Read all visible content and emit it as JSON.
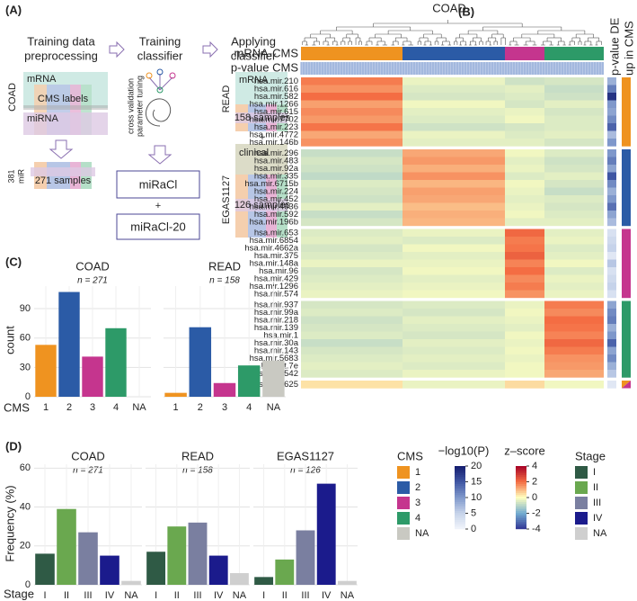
{
  "panel_a": {
    "label": "(A)",
    "steps": [
      [
        "Training data",
        "preprocessing"
      ],
      [
        "Training",
        "classifier"
      ],
      [
        "Applying",
        "classifier"
      ]
    ],
    "cohort": "COAD",
    "mrna": "mRNA",
    "cms_labels": "CMS labels",
    "mirna": "miRNA",
    "features": [
      "381",
      "miR"
    ],
    "samples": "271 samples",
    "tuning": [
      "cross validation",
      "parameter tuning"
    ],
    "classifier": "miRaCl",
    "plus": "+",
    "classifier20": "miRaCl-20",
    "read": "READ",
    "read_mrna": "mRNA",
    "read_samples": "158 samples",
    "plus2": "+",
    "clinical": "clinical",
    "egas": "EGAS1127",
    "egas_samples": "126 samples"
  },
  "panel_c": {
    "label": "(C)",
    "ylabel": "count",
    "xlabel": "CMS"
  },
  "panel_d": {
    "label": "(D)",
    "ylabel": "Frequency (%)",
    "xlabel": "Stage"
  },
  "legends": {
    "cms": {
      "title": "CMS",
      "labels": [
        "1",
        "2",
        "3",
        "4",
        "NA"
      ],
      "colors": [
        "#ef9320",
        "#2b5ba6",
        "#c5358e",
        "#2d9a68",
        "#c9c9c2"
      ]
    },
    "pvalue": {
      "title": "−log10(P)",
      "ticks": [
        20,
        15,
        10,
        5,
        0
      ],
      "colors": [
        "#141c6e",
        "#3f56a3",
        "#7f98cb",
        "#c6d3ea",
        "#f2f5fb"
      ]
    },
    "zscore": {
      "title": "z–score",
      "ticks": [
        4,
        2,
        0,
        -2,
        -4
      ],
      "colors": [
        "#a50026",
        "#f46d43",
        "#ffffbf",
        "#74add1",
        "#313695"
      ]
    },
    "stage": {
      "title": "Stage",
      "labels": [
        "I",
        "II",
        "III",
        "IV",
        "NA"
      ],
      "colors": [
        "#2f5a45",
        "#6aa84f",
        "#7a7fa0",
        "#1b1b8c",
        "#cfcfcf"
      ]
    }
  },
  "chart_data": [
    {
      "type": "heatmap",
      "label": "(B)",
      "title": "COAD",
      "row_annotations": [
        "mRNA-CMS",
        "p-value CMS"
      ],
      "side_columns": [
        "p-value DE",
        "up in CMS"
      ],
      "columns": [
        "1",
        "2",
        "3",
        "4"
      ],
      "rows": [
        "hsa.mir.210",
        "hsa.mir.616",
        "hsa.mir.582",
        "hsa.mir.1266",
        "hsa.mir.615",
        "hsa.mir.7702",
        "hsa.mir.223",
        "hsa.mir.4772",
        "hsa.mir.146b",
        "hsa.mir.296",
        "hsa.mir.483",
        "hsa.mir.92a",
        "hsa.mir.335",
        "hsa.mir.6715b",
        "hsa.mir.224",
        "hsa.mir.452",
        "hsa.mir.4636",
        "hsa.mir.592",
        "hsa.mir.196b",
        "hsa.mir.653",
        "hsa.mir.6854",
        "hsa.mir.4662a",
        "hsa.mir.375",
        "hsa.mir.148a",
        "hsa.mir.96",
        "hsa.mir.429",
        "hsa.mir.1296",
        "hsa.mir.574",
        "hsa.mir.937",
        "hsa.mir.99a",
        "hsa.mir.218",
        "hsa.mir.139",
        "hsa.mir.1",
        "hsa.mir.30a",
        "hsa.mir.143",
        "hsa.mir.5683",
        "hsa.let.7e",
        "hsa.mir.542",
        "hsa.mir.625"
      ],
      "values": [
        [
          1.8,
          -0.3,
          -0.7,
          -0.6
        ],
        [
          1.5,
          -0.5,
          -0.4,
          -0.8
        ],
        [
          2.0,
          -0.6,
          -0.5,
          -0.7
        ],
        [
          1.3,
          -0.2,
          -0.6,
          -0.4
        ],
        [
          1.6,
          -0.4,
          -0.3,
          -0.6
        ],
        [
          1.4,
          -0.5,
          -0.2,
          -0.5
        ],
        [
          1.9,
          -0.7,
          -0.6,
          -0.5
        ],
        [
          1.2,
          -0.3,
          -0.5,
          -0.4
        ],
        [
          1.5,
          -0.4,
          -0.4,
          -0.6
        ],
        [
          -0.8,
          1.2,
          -0.2,
          -0.5
        ],
        [
          -0.6,
          1.4,
          -0.4,
          -0.7
        ],
        [
          -0.7,
          1.1,
          -0.3,
          -0.6
        ],
        [
          -0.9,
          1.5,
          -0.5,
          -0.4
        ],
        [
          -0.5,
          1.0,
          -0.2,
          -0.6
        ],
        [
          -0.6,
          1.3,
          -0.3,
          -0.8
        ],
        [
          -0.7,
          1.2,
          -0.4,
          -0.5
        ],
        [
          -0.4,
          0.9,
          -0.3,
          -0.6
        ],
        [
          -0.8,
          1.1,
          -0.2,
          -0.5
        ],
        [
          -0.6,
          1.0,
          -0.4,
          -0.4
        ],
        [
          -0.5,
          -0.3,
          2.1,
          -0.4
        ],
        [
          -0.4,
          -0.5,
          1.8,
          -0.3
        ],
        [
          -0.6,
          -0.2,
          1.9,
          -0.5
        ],
        [
          -0.5,
          -0.4,
          2.2,
          -0.4
        ],
        [
          -0.3,
          -0.3,
          1.7,
          -0.2
        ],
        [
          -0.6,
          -0.2,
          2.0,
          -0.5
        ],
        [
          -0.5,
          -0.4,
          1.6,
          -0.3
        ],
        [
          -0.4,
          -0.3,
          1.8,
          -0.4
        ],
        [
          -0.3,
          -0.2,
          1.5,
          -0.3
        ],
        [
          -0.6,
          -0.5,
          -0.3,
          1.8
        ],
        [
          -0.5,
          -0.6,
          -0.2,
          1.6
        ],
        [
          -0.7,
          -0.4,
          -0.3,
          2.0
        ],
        [
          -0.6,
          -0.5,
          -0.4,
          1.9
        ],
        [
          -0.5,
          -0.6,
          -0.2,
          1.7
        ],
        [
          -0.8,
          -0.4,
          -0.3,
          2.1
        ],
        [
          -0.6,
          -0.5,
          -0.2,
          1.8
        ],
        [
          -0.5,
          -0.4,
          -0.3,
          1.5
        ],
        [
          -0.4,
          -0.5,
          -0.2,
          1.4
        ],
        [
          -0.5,
          -0.3,
          -0.2,
          1.2
        ],
        [
          0.4,
          -0.3,
          0.5,
          -0.2
        ]
      ],
      "pvalues": [
        8,
        12,
        18,
        10,
        9,
        11,
        14,
        7,
        10,
        10,
        12,
        9,
        15,
        11,
        8,
        10,
        13,
        9,
        7,
        3,
        4,
        5,
        2,
        6,
        3,
        4,
        5,
        3,
        9,
        11,
        12,
        8,
        10,
        14,
        9,
        11,
        8,
        6,
        2
      ],
      "up_in_cms": [
        [
          1
        ],
        [
          1
        ],
        [
          1
        ],
        [
          1
        ],
        [
          1
        ],
        [
          1
        ],
        [
          1
        ],
        [
          1
        ],
        [
          1
        ],
        [
          2
        ],
        [
          2
        ],
        [
          2
        ],
        [
          2
        ],
        [
          2
        ],
        [
          2
        ],
        [
          2
        ],
        [
          2
        ],
        [
          2
        ],
        [
          2
        ],
        [
          3
        ],
        [
          3
        ],
        [
          3
        ],
        [
          3
        ],
        [
          3
        ],
        [
          3
        ],
        [
          3
        ],
        [
          3
        ],
        [
          3
        ],
        [
          4
        ],
        [
          4
        ],
        [
          4
        ],
        [
          4
        ],
        [
          4
        ],
        [
          4
        ],
        [
          4
        ],
        [
          4
        ],
        [
          4
        ],
        [
          4
        ],
        [
          1,
          3
        ]
      ],
      "zlim": [
        -4,
        4
      ],
      "plim": [
        0,
        20
      ]
    },
    {
      "type": "bar",
      "title": "COAD",
      "subtitle": "n = 271",
      "categories": [
        "1",
        "2",
        "3",
        "4",
        "NA"
      ],
      "values": [
        53,
        107,
        41,
        70,
        0
      ],
      "colors": [
        "#ef9320",
        "#2b5ba6",
        "#c5358e",
        "#2d9a68",
        "#c9c9c2"
      ],
      "ylim": [
        0,
        113
      ],
      "yticks": [
        0,
        30,
        60,
        90
      ],
      "grid": true
    },
    {
      "type": "bar",
      "title": "READ",
      "subtitle": "n = 158",
      "categories": [
        "1",
        "2",
        "3",
        "4",
        "NA"
      ],
      "values": [
        4,
        71,
        14,
        32,
        37
      ],
      "colors": [
        "#ef9320",
        "#2b5ba6",
        "#c5358e",
        "#2d9a68",
        "#c9c9c2"
      ],
      "ylim": [
        0,
        113
      ],
      "yticks": [
        0,
        30,
        60,
        90
      ],
      "grid": true
    },
    {
      "type": "bar",
      "title": "COAD",
      "subtitle": "n = 271",
      "categories": [
        "I",
        "II",
        "III",
        "IV",
        "NA"
      ],
      "values": [
        16,
        39,
        27,
        15,
        2
      ],
      "colors": [
        "#2f5a45",
        "#6aa84f",
        "#7a7fa0",
        "#1b1b8c",
        "#cfcfcf"
      ],
      "ylim": [
        0,
        62
      ],
      "yticks": [
        0,
        20,
        40,
        60
      ],
      "grid": true
    },
    {
      "type": "bar",
      "title": "READ",
      "subtitle": "n = 158",
      "categories": [
        "I",
        "II",
        "III",
        "IV",
        "NA"
      ],
      "values": [
        17,
        30,
        32,
        15,
        6
      ],
      "colors": [
        "#2f5a45",
        "#6aa84f",
        "#7a7fa0",
        "#1b1b8c",
        "#cfcfcf"
      ],
      "ylim": [
        0,
        62
      ],
      "yticks": [
        0,
        20,
        40,
        60
      ],
      "grid": true
    },
    {
      "type": "bar",
      "title": "EGAS1127",
      "subtitle": "n = 126",
      "categories": [
        "I",
        "II",
        "III",
        "IV",
        "NA"
      ],
      "values": [
        4,
        13,
        28,
        52,
        2
      ],
      "colors": [
        "#2f5a45",
        "#6aa84f",
        "#7a7fa0",
        "#1b1b8c",
        "#cfcfcf"
      ],
      "ylim": [
        0,
        62
      ],
      "yticks": [
        0,
        20,
        40,
        60
      ],
      "grid": true
    }
  ]
}
